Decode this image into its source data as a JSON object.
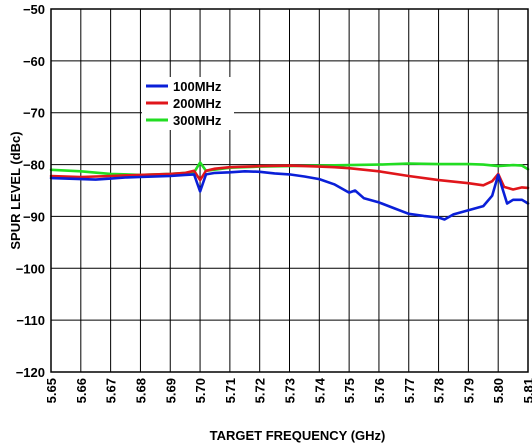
{
  "chart_data": {
    "type": "line",
    "title": "",
    "xlabel": "TARGET FREQUENCY (GHz)",
    "ylabel": "SPUR LEVEL (dBc)",
    "xlim": [
      5.65,
      5.81
    ],
    "ylim": [
      -120,
      -50
    ],
    "x_ticks": [
      "5.65",
      "5.66",
      "5.67",
      "5.68",
      "5.69",
      "5.70",
      "5.71",
      "5.72",
      "5.73",
      "5.74",
      "5.75",
      "5.76",
      "5.77",
      "5.78",
      "5.79",
      "5.80",
      "5.81"
    ],
    "y_ticks": [
      "−120",
      "−110",
      "−100",
      "−90",
      "−80",
      "−70",
      "−60",
      "−50"
    ],
    "grid": true,
    "legend_position": "upper-left",
    "series": [
      {
        "name": "100MHz",
        "color": "#0a1fd8",
        "points": [
          [
            5.65,
            -82.6
          ],
          [
            5.655,
            -82.7
          ],
          [
            5.66,
            -82.8
          ],
          [
            5.665,
            -82.9
          ],
          [
            5.67,
            -82.7
          ],
          [
            5.675,
            -82.5
          ],
          [
            5.68,
            -82.4
          ],
          [
            5.685,
            -82.3
          ],
          [
            5.69,
            -82.2
          ],
          [
            5.695,
            -82.0
          ],
          [
            5.698,
            -81.9
          ],
          [
            5.7,
            -85.2
          ],
          [
            5.702,
            -81.9
          ],
          [
            5.705,
            -81.6
          ],
          [
            5.71,
            -81.5
          ],
          [
            5.715,
            -81.3
          ],
          [
            5.72,
            -81.4
          ],
          [
            5.725,
            -81.7
          ],
          [
            5.73,
            -81.9
          ],
          [
            5.735,
            -82.3
          ],
          [
            5.74,
            -82.8
          ],
          [
            5.745,
            -83.8
          ],
          [
            5.75,
            -85.4
          ],
          [
            5.752,
            -85.0
          ],
          [
            5.755,
            -86.5
          ],
          [
            5.76,
            -87.3
          ],
          [
            5.765,
            -88.4
          ],
          [
            5.77,
            -89.5
          ],
          [
            5.775,
            -89.9
          ],
          [
            5.78,
            -90.2
          ],
          [
            5.782,
            -90.6
          ],
          [
            5.785,
            -89.6
          ],
          [
            5.79,
            -88.8
          ],
          [
            5.795,
            -88.0
          ],
          [
            5.798,
            -86.0
          ],
          [
            5.8,
            -82.0
          ],
          [
            5.803,
            -87.5
          ],
          [
            5.805,
            -86.8
          ],
          [
            5.808,
            -86.8
          ],
          [
            5.81,
            -87.5
          ]
        ]
      },
      {
        "name": "200MHz",
        "color": "#e0161b",
        "points": [
          [
            5.65,
            -82.2
          ],
          [
            5.66,
            -82.4
          ],
          [
            5.67,
            -82.2
          ],
          [
            5.68,
            -82.0
          ],
          [
            5.69,
            -81.8
          ],
          [
            5.695,
            -81.6
          ],
          [
            5.698,
            -81.2
          ],
          [
            5.7,
            -83.0
          ],
          [
            5.702,
            -81.2
          ],
          [
            5.705,
            -80.8
          ],
          [
            5.71,
            -80.5
          ],
          [
            5.72,
            -80.3
          ],
          [
            5.73,
            -80.2
          ],
          [
            5.74,
            -80.4
          ],
          [
            5.745,
            -80.5
          ],
          [
            5.75,
            -80.7
          ],
          [
            5.76,
            -81.3
          ],
          [
            5.77,
            -82.2
          ],
          [
            5.78,
            -83.0
          ],
          [
            5.79,
            -83.6
          ],
          [
            5.795,
            -84.0
          ],
          [
            5.798,
            -83.2
          ],
          [
            5.8,
            -81.8
          ],
          [
            5.802,
            -84.3
          ],
          [
            5.805,
            -84.8
          ],
          [
            5.808,
            -84.4
          ],
          [
            5.81,
            -84.5
          ]
        ]
      },
      {
        "name": "300MHz",
        "color": "#22dd22",
        "points": [
          [
            5.65,
            -81.0
          ],
          [
            5.66,
            -81.3
          ],
          [
            5.67,
            -81.8
          ],
          [
            5.68,
            -82.0
          ],
          [
            5.69,
            -81.8
          ],
          [
            5.698,
            -81.5
          ],
          [
            5.7,
            -79.6
          ],
          [
            5.702,
            -81.2
          ],
          [
            5.71,
            -80.6
          ],
          [
            5.72,
            -80.4
          ],
          [
            5.73,
            -80.3
          ],
          [
            5.74,
            -80.2
          ],
          [
            5.75,
            -80.1
          ],
          [
            5.76,
            -80.0
          ],
          [
            5.77,
            -79.8
          ],
          [
            5.78,
            -79.9
          ],
          [
            5.79,
            -79.9
          ],
          [
            5.795,
            -80.0
          ],
          [
            5.8,
            -80.3
          ],
          [
            5.805,
            -80.1
          ],
          [
            5.808,
            -80.2
          ],
          [
            5.81,
            -80.9
          ]
        ]
      }
    ]
  }
}
